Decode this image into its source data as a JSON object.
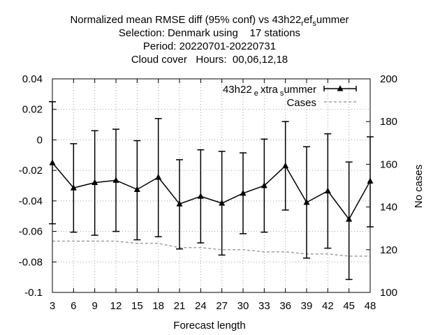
{
  "chart_data": {
    "type": "line",
    "title_lines": [
      "Normalized mean RMSE diff (95% conf) vs 43h22_ref_summer",
      "Selection: Denmark using    17 stations",
      "Period: 20220701-20220731",
      "Cloud cover   Hours:  00,06,12,18"
    ],
    "xlabel": "Forecast length",
    "ylabel": "",
    "y2label": "No cases",
    "x": [
      3,
      6,
      9,
      12,
      15,
      18,
      21,
      24,
      27,
      30,
      33,
      36,
      39,
      42,
      45,
      48
    ],
    "xlim": [
      3,
      48
    ],
    "ylim": [
      -0.1,
      0.04
    ],
    "y2lim": [
      100,
      200
    ],
    "yticks": [
      "0.04",
      "0.02",
      "0",
      "-0.02",
      "-0.04",
      "-0.06",
      "-0.08",
      "-0.1"
    ],
    "y2ticks": [
      "200",
      "180",
      "160",
      "140",
      "120",
      "100"
    ],
    "xticks": [
      "3",
      "6",
      "9",
      "12",
      "15",
      "18",
      "21",
      "24",
      "27",
      "30",
      "33",
      "36",
      "39",
      "42",
      "45",
      "48"
    ],
    "grid": true,
    "legend_position": "top-right",
    "series": [
      {
        "name": "43h22_extra_summer",
        "legend_label": {
          "base": "43h22",
          "sub1": "e",
          "mid": "xtra",
          "sub2": "s",
          "end": "ummer"
        },
        "axis": "y1",
        "style": "solid-line-triangles-errorbars",
        "color": "#000000",
        "values": [
          -0.015,
          -0.0315,
          -0.028,
          -0.0265,
          -0.0325,
          -0.0245,
          -0.042,
          -0.037,
          -0.0415,
          -0.035,
          -0.03,
          -0.017,
          -0.041,
          -0.0335,
          -0.052,
          -0.027
        ],
        "lower": [
          -0.055,
          -0.0605,
          -0.0625,
          -0.06,
          -0.0655,
          -0.0635,
          -0.0715,
          -0.0675,
          -0.0755,
          -0.0615,
          -0.0605,
          -0.046,
          -0.0775,
          -0.071,
          -0.0915,
          -0.057
        ],
        "upper": [
          0.025,
          -0.0025,
          0.006,
          0.007,
          -0.0005,
          0.014,
          -0.013,
          -0.0065,
          -0.0075,
          -0.0085,
          0.0005,
          0.012,
          -0.0045,
          0.004,
          -0.0145,
          0.002
        ]
      },
      {
        "name": "Cases",
        "axis": "y2",
        "style": "dashed-line",
        "color": "#a0a0a0",
        "values": [
          124,
          124,
          124,
          124,
          123,
          123,
          121,
          121,
          120,
          120,
          119,
          119,
          118,
          118,
          117,
          117
        ]
      }
    ]
  }
}
